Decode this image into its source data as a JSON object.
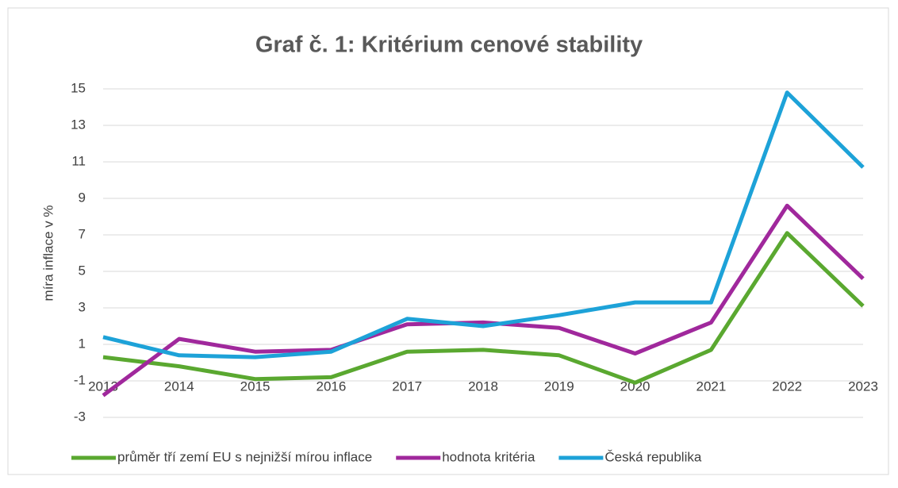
{
  "chart_data": {
    "type": "line",
    "title": "Graf č. 1: Kritérium cenové stability",
    "y_label": "míra inflace v %",
    "categories": [
      "2013",
      "2014",
      "2015",
      "2016",
      "2017",
      "2018",
      "2019",
      "2020",
      "2021",
      "2022",
      "2023"
    ],
    "series": [
      {
        "name": "průměr tří zemí EU s nejnižší mírou inflace",
        "color": "#5aa830",
        "values": [
          0.3,
          -0.2,
          -0.9,
          -0.8,
          0.6,
          0.7,
          0.4,
          -1.1,
          0.7,
          7.1,
          3.1
        ]
      },
      {
        "name": "hodnota kritéria",
        "color": "#a0289c",
        "values": [
          -1.8,
          1.3,
          0.6,
          0.7,
          2.1,
          2.2,
          1.9,
          0.5,
          2.2,
          8.6,
          4.6
        ]
      },
      {
        "name": "Česká republika",
        "color": "#1da2d8",
        "values": [
          1.4,
          0.4,
          0.3,
          0.6,
          2.4,
          2.0,
          2.6,
          3.3,
          3.3,
          14.8,
          10.7
        ]
      }
    ],
    "ylim": [
      -3,
      15
    ],
    "yticks": [
      -3,
      -1,
      1,
      3,
      5,
      7,
      9,
      11,
      13,
      15
    ],
    "grid": true,
    "legend": "bottom"
  }
}
